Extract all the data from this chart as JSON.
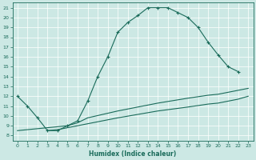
{
  "xlabel": "Humidex (Indice chaleur)",
  "bg_color": "#cce8e4",
  "line_color": "#1a6b5a",
  "xlim": [
    -0.5,
    23.5
  ],
  "ylim": [
    7.5,
    21.5
  ],
  "xticks": [
    0,
    1,
    2,
    3,
    4,
    5,
    6,
    7,
    8,
    9,
    10,
    11,
    12,
    13,
    14,
    15,
    16,
    17,
    18,
    19,
    20,
    21,
    22,
    23
  ],
  "yticks": [
    8,
    9,
    10,
    11,
    12,
    13,
    14,
    15,
    16,
    17,
    18,
    19,
    20,
    21
  ],
  "curve1_x": [
    0,
    1,
    2,
    3,
    4,
    5,
    6,
    7,
    8,
    9,
    10,
    11,
    12,
    13,
    14,
    15,
    16,
    17,
    18,
    19,
    20,
    21,
    22
  ],
  "curve1_y": [
    12.0,
    11.0,
    9.8,
    8.5,
    8.5,
    9.0,
    9.5,
    11.5,
    14.0,
    16.0,
    18.5,
    19.5,
    20.2,
    21.0,
    21.0,
    21.0,
    20.5,
    20.0,
    19.0,
    17.5,
    16.2,
    15.0,
    14.5
  ],
  "line2_x": [
    0,
    5,
    6,
    7,
    10,
    14,
    17,
    19,
    20,
    22,
    23
  ],
  "line2_y": [
    8.5,
    9.0,
    9.3,
    9.8,
    10.5,
    11.3,
    11.8,
    12.1,
    12.2,
    12.6,
    12.8
  ],
  "line3_x": [
    3,
    4,
    5,
    6,
    10,
    14,
    17,
    19,
    20,
    22,
    23
  ],
  "line3_y": [
    8.5,
    8.6,
    8.8,
    9.0,
    9.8,
    10.5,
    10.9,
    11.2,
    11.3,
    11.7,
    12.0
  ]
}
